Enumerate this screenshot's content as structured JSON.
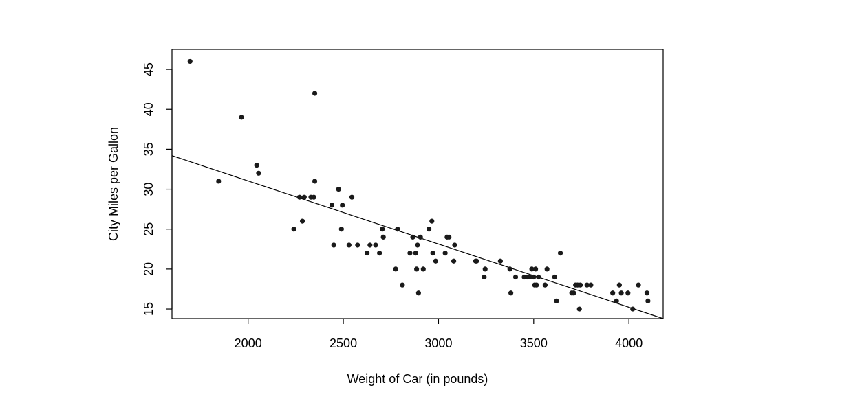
{
  "chart_data": {
    "type": "scatter",
    "title": "",
    "xlabel": "Weight of Car (in pounds)",
    "ylabel": "City Miles per Gallon",
    "xlim": [
      1600,
      4180
    ],
    "ylim": [
      13.8,
      47.5
    ],
    "xticks": [
      2000,
      2500,
      3000,
      3500,
      4000
    ],
    "yticks": [
      15,
      20,
      25,
      30,
      35,
      40,
      45
    ],
    "grid": false,
    "legend": "none",
    "point_color": "#1a1a1a",
    "line_color": "#000000",
    "regression_line": {
      "x": [
        1600,
        4180
      ],
      "y": [
        34.2,
        13.8
      ]
    },
    "points": [
      {
        "x": 1695,
        "y": 46
      },
      {
        "x": 1845,
        "y": 31
      },
      {
        "x": 1965,
        "y": 39
      },
      {
        "x": 2045,
        "y": 33
      },
      {
        "x": 2055,
        "y": 32
      },
      {
        "x": 2240,
        "y": 25
      },
      {
        "x": 2270,
        "y": 29
      },
      {
        "x": 2285,
        "y": 26
      },
      {
        "x": 2295,
        "y": 29
      },
      {
        "x": 2330,
        "y": 29
      },
      {
        "x": 2345,
        "y": 29
      },
      {
        "x": 2350,
        "y": 42
      },
      {
        "x": 2350,
        "y": 31
      },
      {
        "x": 2440,
        "y": 28
      },
      {
        "x": 2450,
        "y": 23
      },
      {
        "x": 2475,
        "y": 30
      },
      {
        "x": 2490,
        "y": 25
      },
      {
        "x": 2495,
        "y": 28
      },
      {
        "x": 2530,
        "y": 23
      },
      {
        "x": 2545,
        "y": 29
      },
      {
        "x": 2575,
        "y": 23
      },
      {
        "x": 2625,
        "y": 22
      },
      {
        "x": 2640,
        "y": 23
      },
      {
        "x": 2670,
        "y": 23
      },
      {
        "x": 2690,
        "y": 22
      },
      {
        "x": 2705,
        "y": 25
      },
      {
        "x": 2710,
        "y": 24
      },
      {
        "x": 2775,
        "y": 20
      },
      {
        "x": 2785,
        "y": 25
      },
      {
        "x": 2810,
        "y": 18
      },
      {
        "x": 2850,
        "y": 22
      },
      {
        "x": 2865,
        "y": 24
      },
      {
        "x": 2880,
        "y": 22
      },
      {
        "x": 2885,
        "y": 20
      },
      {
        "x": 2890,
        "y": 23
      },
      {
        "x": 2895,
        "y": 17
      },
      {
        "x": 2905,
        "y": 24
      },
      {
        "x": 2920,
        "y": 20
      },
      {
        "x": 2950,
        "y": 25
      },
      {
        "x": 2965,
        "y": 26
      },
      {
        "x": 2970,
        "y": 22
      },
      {
        "x": 2985,
        "y": 21
      },
      {
        "x": 3035,
        "y": 22
      },
      {
        "x": 3045,
        "y": 24
      },
      {
        "x": 3055,
        "y": 24
      },
      {
        "x": 3080,
        "y": 21
      },
      {
        "x": 3085,
        "y": 23
      },
      {
        "x": 3195,
        "y": 21
      },
      {
        "x": 3200,
        "y": 21
      },
      {
        "x": 3240,
        "y": 19
      },
      {
        "x": 3245,
        "y": 20
      },
      {
        "x": 3325,
        "y": 21
      },
      {
        "x": 3375,
        "y": 20
      },
      {
        "x": 3380,
        "y": 17
      },
      {
        "x": 3405,
        "y": 19
      },
      {
        "x": 3450,
        "y": 19
      },
      {
        "x": 3465,
        "y": 19
      },
      {
        "x": 3480,
        "y": 19
      },
      {
        "x": 3490,
        "y": 20
      },
      {
        "x": 3500,
        "y": 19
      },
      {
        "x": 3505,
        "y": 18
      },
      {
        "x": 3510,
        "y": 20
      },
      {
        "x": 3515,
        "y": 18
      },
      {
        "x": 3525,
        "y": 19
      },
      {
        "x": 3560,
        "y": 18
      },
      {
        "x": 3570,
        "y": 20
      },
      {
        "x": 3610,
        "y": 19
      },
      {
        "x": 3620,
        "y": 16
      },
      {
        "x": 3640,
        "y": 22
      },
      {
        "x": 3700,
        "y": 17
      },
      {
        "x": 3710,
        "y": 17
      },
      {
        "x": 3720,
        "y": 18
      },
      {
        "x": 3730,
        "y": 18
      },
      {
        "x": 3740,
        "y": 15
      },
      {
        "x": 3745,
        "y": 18
      },
      {
        "x": 3780,
        "y": 18
      },
      {
        "x": 3800,
        "y": 18
      },
      {
        "x": 3915,
        "y": 17
      },
      {
        "x": 3935,
        "y": 16
      },
      {
        "x": 3950,
        "y": 18
      },
      {
        "x": 3960,
        "y": 17
      },
      {
        "x": 3995,
        "y": 17
      },
      {
        "x": 4020,
        "y": 15
      },
      {
        "x": 4050,
        "y": 18
      },
      {
        "x": 4095,
        "y": 17
      },
      {
        "x": 4100,
        "y": 16
      }
    ]
  }
}
